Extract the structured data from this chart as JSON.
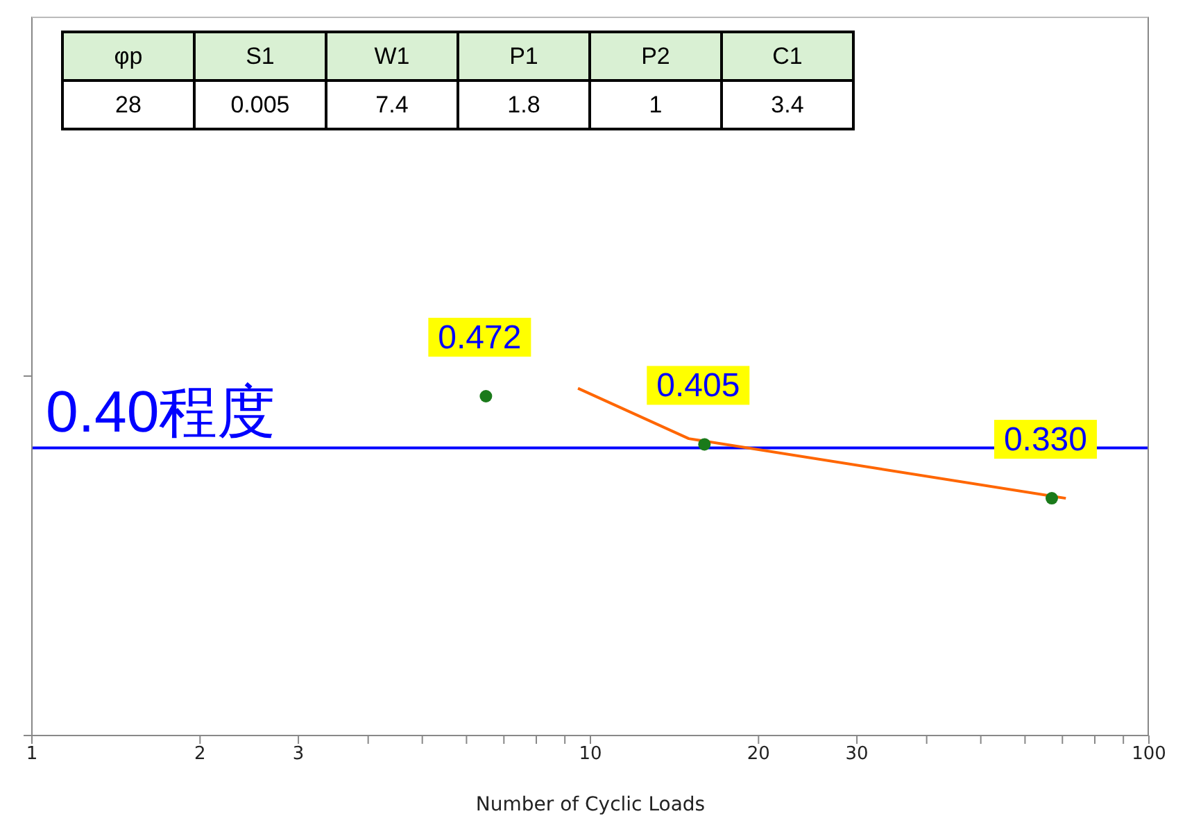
{
  "chart_data": [
    {
      "type": "scatter",
      "xlabel": "Number of Cyclic Loads",
      "log": "x",
      "xlim": [
        1,
        100
      ],
      "xticks": [
        1,
        2,
        3,
        {
          "value": 4,
          "label": null
        },
        {
          "value": 5,
          "label": null
        },
        {
          "value": 6,
          "label": null
        },
        {
          "value": 7,
          "label": null
        },
        {
          "value": 8,
          "label": null
        },
        {
          "value": 9,
          "label": null
        },
        10,
        20,
        30,
        {
          "value": 40,
          "label": null
        },
        {
          "value": 50,
          "label": null
        },
        {
          "value": 60,
          "label": null
        },
        {
          "value": 70,
          "label": null
        },
        {
          "value": 80,
          "label": null
        },
        {
          "value": 90,
          "label": null
        },
        100
      ],
      "ylim": [
        0,
        1
      ],
      "yticks": [
        {
          "value": 0,
          "label": null
        },
        {
          "value": 0.5,
          "label": null
        }
      ],
      "tick_labels": "x",
      "marker": "circle",
      "series": [
        {
          "type": "scatter",
          "color": "#1a7a1a",
          "x": [
            6.5,
            16,
            67
          ],
          "values": [
            0.472,
            0.405,
            0.33
          ],
          "value_labels": [
            "0.472",
            "0.405",
            "0.330"
          ]
        },
        {
          "type": "line",
          "color": "#ff6600",
          "marker": "none",
          "x": [
            9.5,
            15,
            71
          ],
          "values": [
            0.483,
            0.413,
            0.33
          ]
        }
      ],
      "ref_lines": [
        {
          "axis": "y",
          "value": 0.4,
          "label": "0.40程度",
          "color": "#0000ff"
        }
      ]
    },
    {
      "type": "other",
      "data_labels": true,
      "categories": [
        "φp",
        "S1",
        "W1",
        "P1",
        "P2",
        "C1"
      ],
      "values": [
        28,
        0.005,
        7.4,
        1.8,
        1,
        3.4
      ]
    }
  ]
}
